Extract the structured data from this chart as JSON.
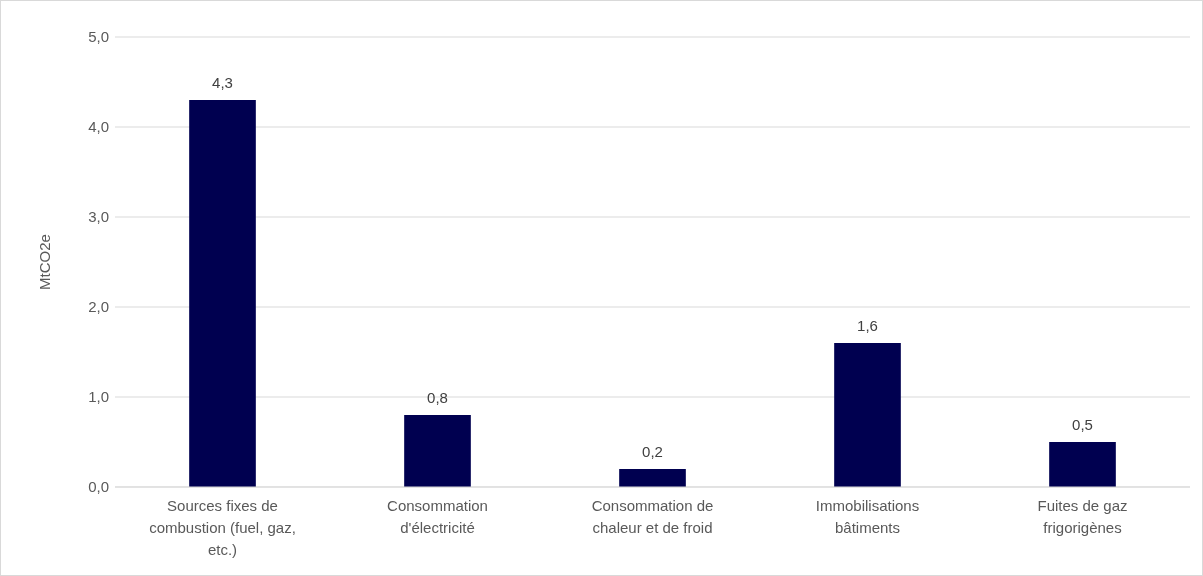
{
  "chart_data": {
    "type": "bar",
    "ylabel": "MtCO2e",
    "categories": [
      "Sources fixes de combustion (fuel, gaz, etc.)",
      "Consommation d'électricité",
      "Consommation de chaleur et de froid",
      "Immobilisations bâtiments",
      "Fuites de gaz frigorigènes"
    ],
    "values": [
      4.3,
      0.8,
      0.2,
      1.6,
      0.5
    ],
    "value_labels": [
      "4,3",
      "0,8",
      "0,2",
      "1,6",
      "0,5"
    ],
    "color": "#000050",
    "ylim": [
      0,
      5
    ],
    "yticks": [
      {
        "value": 0,
        "label": "0,0"
      },
      {
        "value": 1,
        "label": "1,0"
      },
      {
        "value": 2,
        "label": "2,0"
      },
      {
        "value": 3,
        "label": "3,0"
      },
      {
        "value": 4,
        "label": "4,0"
      },
      {
        "value": 5,
        "label": "5,0"
      }
    ],
    "grid": "y"
  }
}
